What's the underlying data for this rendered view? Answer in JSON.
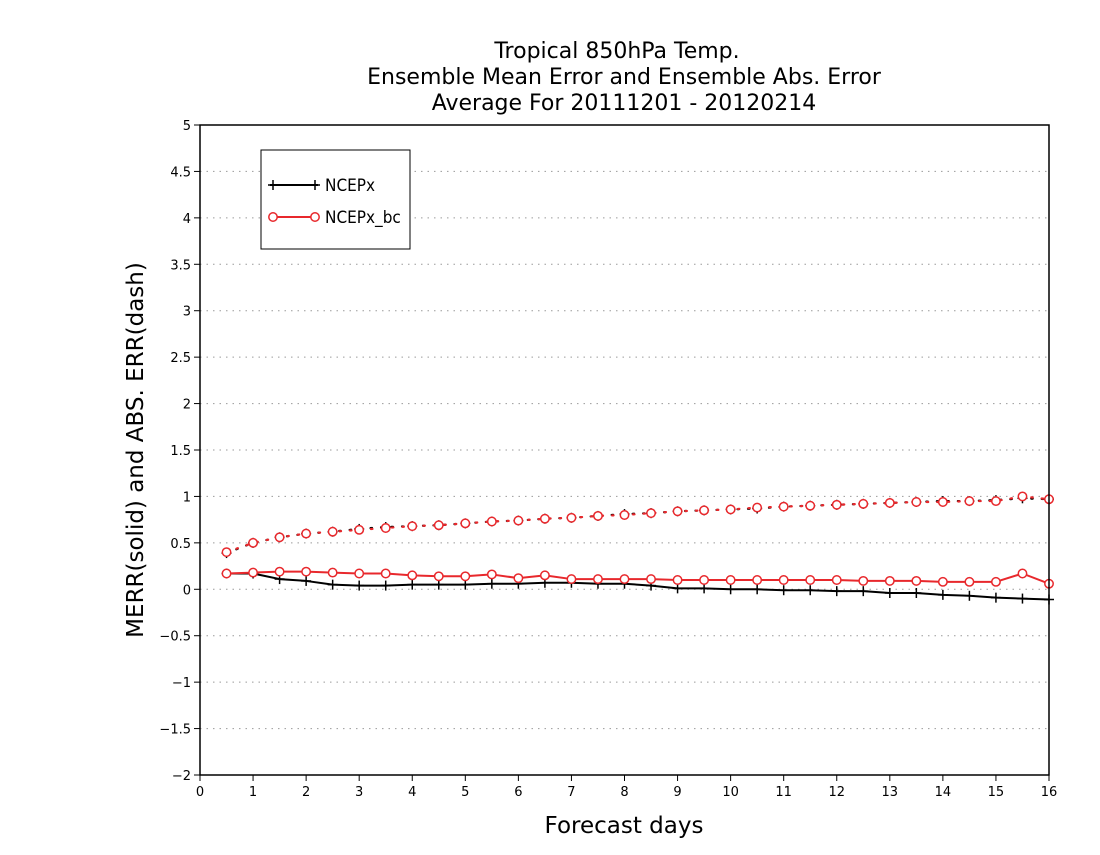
{
  "chart_data": {
    "type": "line",
    "title_lines": [
      "Tropical 850hPa Temp.",
      "Ensemble Mean Error and Ensemble Abs. Error",
      "Average For 20111201 - 20120214"
    ],
    "xlabel": "Forecast days",
    "ylabel": "MERR(solid) and ABS. ERR(dash)",
    "xlim": [
      0,
      16
    ],
    "ylim": [
      -2,
      5
    ],
    "x_ticks": [
      0,
      1,
      2,
      3,
      4,
      5,
      6,
      7,
      8,
      9,
      10,
      11,
      12,
      13,
      14,
      15,
      16
    ],
    "y_ticks": [
      -2,
      -1.5,
      -1,
      -0.5,
      0,
      0.5,
      1,
      1.5,
      2,
      2.5,
      3,
      3.5,
      4,
      4.5,
      5
    ],
    "x_tick_labels": [
      "0",
      "1",
      "2",
      "3",
      "4",
      "5",
      "6",
      "7",
      "8",
      "9",
      "10",
      "11",
      "12",
      "13",
      "14",
      "15",
      "16"
    ],
    "y_tick_labels": [
      "−2",
      "−1.5",
      "−1",
      "−0.5",
      "0",
      "0.5",
      "1",
      "1.5",
      "2",
      "2.5",
      "3",
      "3.5",
      "4",
      "4.5",
      "5"
    ],
    "grid": "horizontal-dotted",
    "legend_position": "top-left",
    "x": [
      0.5,
      1,
      1.5,
      2,
      2.5,
      3,
      3.5,
      4,
      4.5,
      5,
      5.5,
      6,
      6.5,
      7,
      7.5,
      8,
      8.5,
      9,
      9.5,
      10,
      10.5,
      11,
      11.5,
      12,
      12.5,
      13,
      13.5,
      14,
      14.5,
      15,
      15.5,
      16
    ],
    "series": [
      {
        "name": "NCEPx",
        "color": "#000000",
        "marker": "plus",
        "style": "solid",
        "values": [
          0.17,
          0.17,
          0.11,
          0.09,
          0.05,
          0.04,
          0.04,
          0.05,
          0.05,
          0.05,
          0.06,
          0.06,
          0.07,
          0.07,
          0.06,
          0.06,
          0.04,
          0.01,
          0.01,
          0.0,
          0.0,
          -0.01,
          -0.01,
          -0.02,
          -0.02,
          -0.04,
          -0.04,
          -0.06,
          -0.07,
          -0.09,
          -0.1,
          -0.11
        ]
      },
      {
        "name": "NCEPx_bc",
        "color": "#e8282c",
        "marker": "circle",
        "style": "solid",
        "values": [
          0.17,
          0.18,
          0.19,
          0.19,
          0.18,
          0.17,
          0.17,
          0.15,
          0.14,
          0.14,
          0.16,
          0.12,
          0.15,
          0.11,
          0.11,
          0.11,
          0.11,
          0.1,
          0.1,
          0.1,
          0.1,
          0.1,
          0.1,
          0.1,
          0.09,
          0.09,
          0.09,
          0.08,
          0.08,
          0.08,
          0.17,
          0.06
        ]
      },
      {
        "series_ref": "NCEPx",
        "color": "#000000",
        "marker": "plus",
        "style": "dotted",
        "values": [
          0.39,
          0.5,
          0.56,
          0.6,
          0.62,
          0.65,
          0.67,
          0.68,
          0.69,
          0.71,
          0.73,
          0.74,
          0.76,
          0.77,
          0.79,
          0.81,
          0.82,
          0.84,
          0.85,
          0.86,
          0.87,
          0.89,
          0.9,
          0.91,
          0.92,
          0.93,
          0.94,
          0.95,
          0.95,
          0.96,
          0.98,
          0.97
        ]
      },
      {
        "series_ref": "NCEPx_bc",
        "color": "#e8282c",
        "marker": "circle",
        "style": "dotted",
        "values": [
          0.4,
          0.5,
          0.56,
          0.6,
          0.62,
          0.64,
          0.66,
          0.68,
          0.69,
          0.71,
          0.73,
          0.74,
          0.76,
          0.77,
          0.79,
          0.8,
          0.82,
          0.84,
          0.85,
          0.86,
          0.88,
          0.89,
          0.9,
          0.91,
          0.92,
          0.93,
          0.94,
          0.94,
          0.95,
          0.95,
          1.0,
          0.97
        ]
      }
    ]
  }
}
